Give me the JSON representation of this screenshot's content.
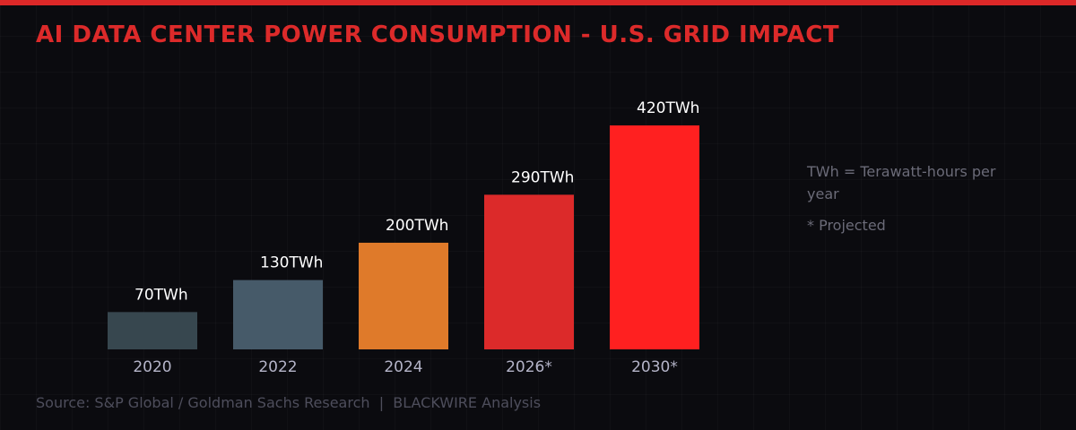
{
  "title": "AI DATA CENTER POWER CONSUMPTION - U.S. GRID IMPACT",
  "notes": {
    "unit": "TWh = Terawatt-hours per year",
    "projected": "* Projected"
  },
  "source": "Source: S&P Global / Goldman Sachs Research  |  BLACKWIRE Analysis",
  "colors": {
    "accent": "#dc2a2a",
    "background": "#0b0b0f"
  },
  "chart_data": {
    "type": "bar",
    "categories": [
      "2020",
      "2022",
      "2024",
      "2026*",
      "2030*"
    ],
    "values": [
      70,
      130,
      200,
      290,
      420
    ],
    "data_labels": [
      "70TWh",
      "130TWh",
      "200TWh",
      "290TWh",
      "420TWh"
    ],
    "unit": "TWh",
    "bar_colors": [
      "#37474f",
      "#465a69",
      "#df7a2a",
      "#dc2a2a",
      "#ff2020"
    ],
    "grid": true
  }
}
